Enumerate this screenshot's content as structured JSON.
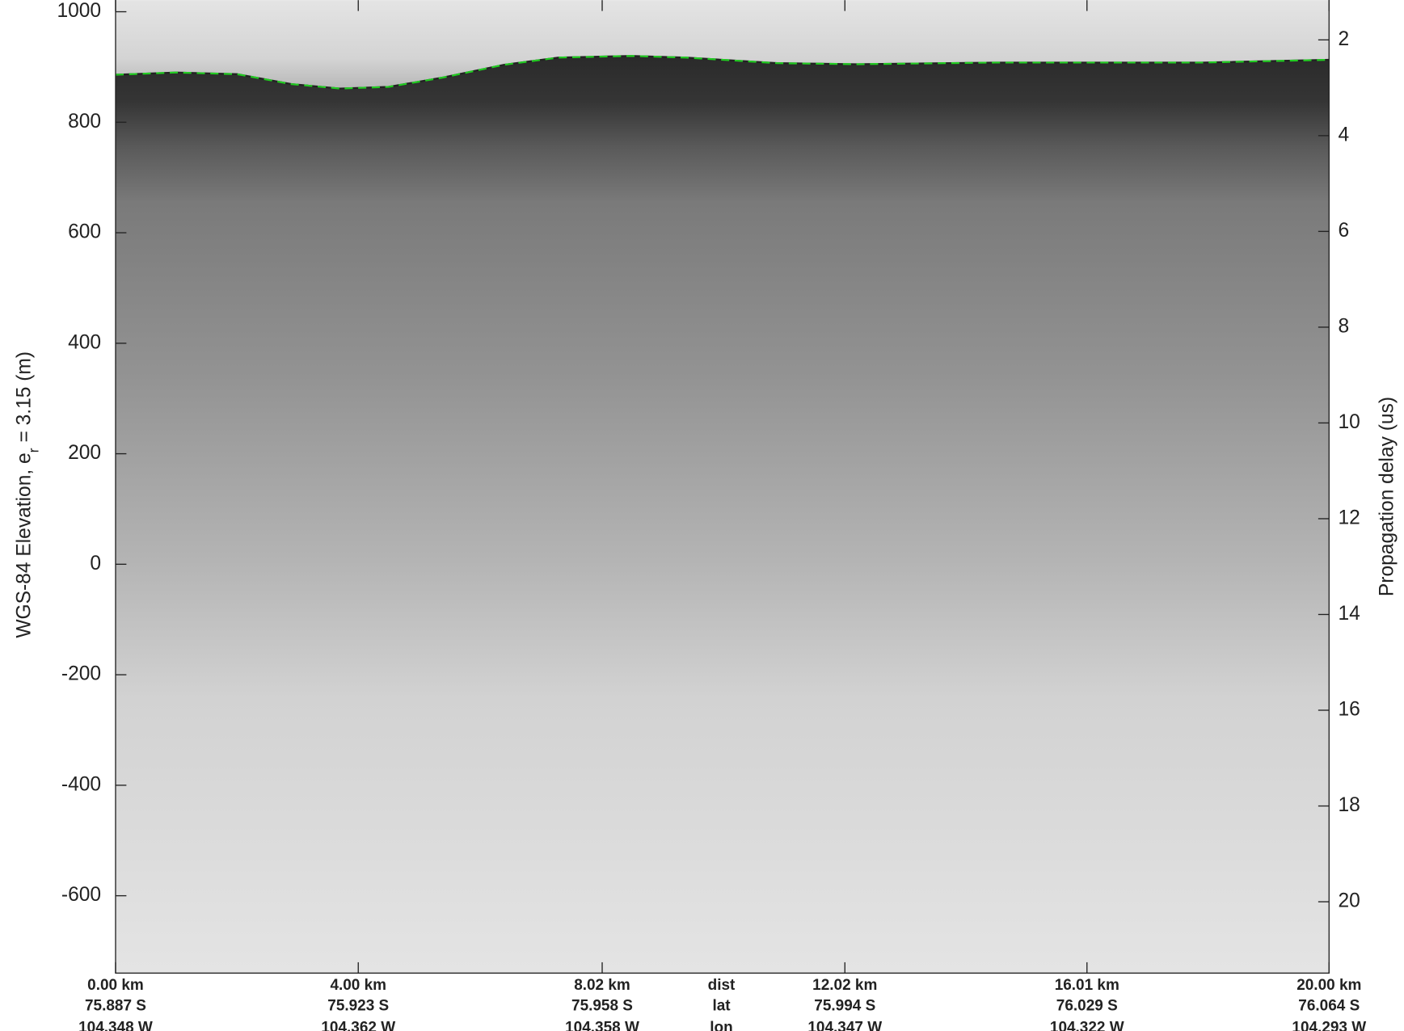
{
  "chart_data": {
    "type": "echogram",
    "ylabel": {
      "text": "WGS-84 Elevation, e",
      "subscript": "r",
      "suffix": " = 3.15 (m)"
    },
    "y2label": "Propagation delay (us)",
    "xlim": [
      0,
      20
    ],
    "xticks": [
      {
        "value": 0,
        "label": "0.00 km"
      },
      {
        "value": 4,
        "label": "4.00 km"
      },
      {
        "value": 8.02,
        "label": "8.02 km"
      },
      {
        "value": 12.02,
        "label": "12.02 km"
      },
      {
        "value": 16.01,
        "label": "16.01 km"
      },
      {
        "value": 20,
        "label": "20.00 km"
      }
    ],
    "xtick_lat": [
      "75.887 S",
      "75.923 S",
      "75.958 S",
      "75.994 S",
      "76.029 S",
      "76.064 S"
    ],
    "xtick_lon": [
      "104.348 W",
      "104.362 W",
      "104.358 W",
      "104.347 W",
      "104.322 W",
      "104.293 W"
    ],
    "x_row_labels": [
      "dist",
      "lat",
      "lon"
    ],
    "ylim": [
      -740,
      1021
    ],
    "yticks": [
      -600,
      -400,
      -200,
      0,
      200,
      400,
      600,
      800,
      1000
    ],
    "y2lim": [
      1.17,
      21.49
    ],
    "y2_inverted": true,
    "y2ticks": [
      2,
      4,
      6,
      8,
      10,
      12,
      14,
      16,
      18,
      20
    ],
    "grid": false,
    "series": [
      {
        "name": "surface",
        "color": "#22cc22",
        "x": [
          0,
          1,
          2,
          2.9,
          3.7,
          4.5,
          5.4,
          6.4,
          7.3,
          8.5,
          9.4,
          10.9,
          12.2,
          14.5,
          16,
          17.9,
          20
        ],
        "values": [
          886,
          890,
          887,
          869,
          861,
          864,
          881,
          904,
          917,
          920,
          917,
          907,
          905,
          908,
          908,
          908,
          913
        ]
      }
    ]
  }
}
